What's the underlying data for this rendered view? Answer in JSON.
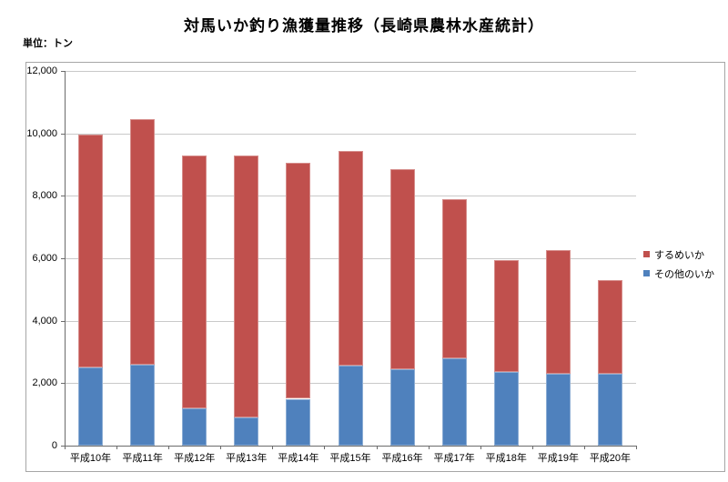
{
  "page": {
    "title": "対馬いか釣り漁獲量推移（長崎県農林水産統計）",
    "unit_label": "単位：トン"
  },
  "chart_data": {
    "type": "bar",
    "stacked": true,
    "title": "対馬いか釣り漁獲量推移（長崎県農林水産統計）",
    "unit_label": "単位：トン",
    "categories": [
      "平成10年",
      "平成11年",
      "平成12年",
      "平成13年",
      "平成14年",
      "平成15年",
      "平成16年",
      "平成17年",
      "平成18年",
      "平成19年",
      "平成20年"
    ],
    "series": [
      {
        "name": "その他のいか",
        "stack_position": "bottom",
        "color": "#4F81BD",
        "values": [
          2500,
          2600,
          1200,
          900,
          1500,
          2550,
          2450,
          2800,
          2350,
          2300,
          2300
        ]
      },
      {
        "name": "するめいか",
        "stack_position": "top",
        "color": "#C0504D",
        "values": [
          7450,
          7850,
          8100,
          8400,
          7550,
          6900,
          6400,
          5100,
          3600,
          3950,
          3000
        ]
      }
    ],
    "totals": [
      9950,
      10450,
      9300,
      9300,
      9050,
      9450,
      8850,
      7900,
      5950,
      6250,
      5300
    ],
    "legend": {
      "position": "right",
      "order": [
        "するめいか",
        "その他のいか"
      ]
    },
    "xlabel": "",
    "ylabel": "",
    "ylim": [
      0,
      12000
    ],
    "ytick_values": [
      0,
      2000,
      4000,
      6000,
      8000,
      10000,
      12000
    ],
    "ytick_labels": [
      "0",
      "2,000",
      "4,000",
      "6,000",
      "8,000",
      "10,000",
      "12,000"
    ],
    "grid": true,
    "colors": {
      "gridline": "#c9c9c9",
      "axis": "#6b6b6b",
      "chart_border": "#a6a6a6",
      "text": "#000000",
      "background": "#ffffff"
    }
  }
}
